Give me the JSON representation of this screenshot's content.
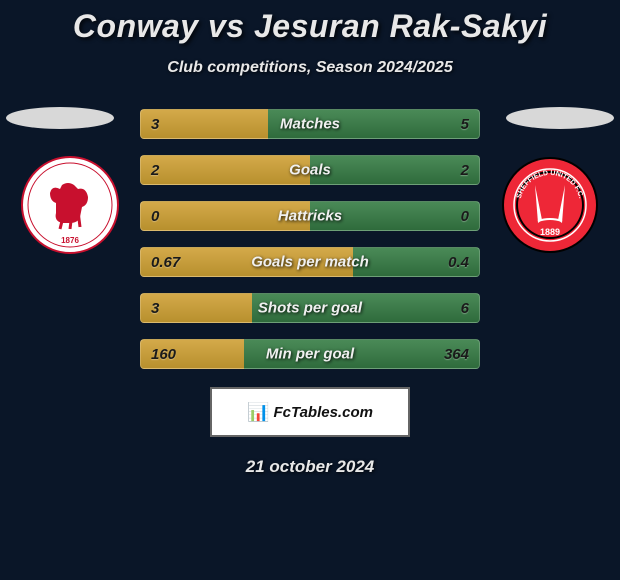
{
  "header": {
    "title": "Conway vs Jesuran Rak-Sakyi",
    "subtitle": "Club competitions, Season 2024/2025"
  },
  "stats": [
    {
      "label": "Matches",
      "left_val": "3",
      "right_val": "5",
      "left_pct": 37.5,
      "right_pct": 62.5
    },
    {
      "label": "Goals",
      "left_val": "2",
      "right_val": "2",
      "left_pct": 50,
      "right_pct": 50
    },
    {
      "label": "Hattricks",
      "left_val": "0",
      "right_val": "0",
      "left_pct": 50,
      "right_pct": 50
    },
    {
      "label": "Goals per match",
      "left_val": "0.67",
      "right_val": "0.4",
      "left_pct": 62.5,
      "right_pct": 37.5
    },
    {
      "label": "Shots per goal",
      "left_val": "3",
      "right_val": "6",
      "left_pct": 33,
      "right_pct": 67
    },
    {
      "label": "Min per goal",
      "left_val": "160",
      "right_val": "364",
      "left_pct": 30.5,
      "right_pct": 69.5
    }
  ],
  "colors": {
    "left_bar_top": "#d4a94a",
    "left_bar_bottom": "#b8902e",
    "right_bar_top": "#4a8a57",
    "right_bar_bottom": "#2f6b3c",
    "background": "#0a1628",
    "text_light": "#e8e8e8"
  },
  "crests": {
    "left": {
      "name": "middlesbrough-crest",
      "badge_bg": "#ffffff",
      "badge_ring": "#c8102e",
      "lion_color": "#c8102e",
      "year": "1876"
    },
    "right": {
      "name": "sheffield-united-crest",
      "badge_bg": "#ee2737",
      "badge_ring_outer": "#ffffff",
      "badge_ring_inner": "#000000",
      "blade_color": "#ffffff",
      "text": "SHEFFIELD UNITED F.C.",
      "year": "1889"
    }
  },
  "attribution": {
    "icon": "📊",
    "text": "FcTables.com"
  },
  "date": "21 october 2024"
}
